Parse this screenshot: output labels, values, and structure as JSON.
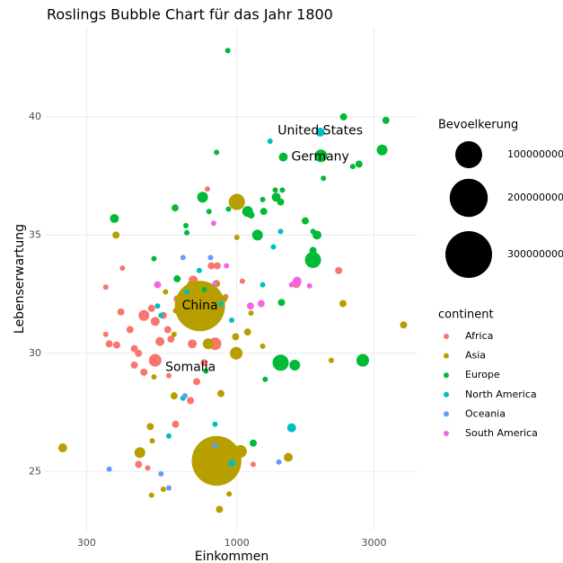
{
  "chart_data": {
    "type": "bubble",
    "title": "Roslings Bubble Chart für das Jahr 1800",
    "x_label": "Einkommen",
    "y_label": "Lebenserwartung",
    "x_log": true,
    "grid": true,
    "xlim": [
      215,
      4250
    ],
    "ylim": [
      22.5,
      43.8
    ],
    "xticks": [
      300,
      1000,
      3000
    ],
    "yticks": [
      25,
      30,
      35,
      40
    ],
    "size_legend_title": "Bevoelkerung",
    "size_legend": [
      100000000,
      200000000,
      300000000
    ],
    "color_legend_title": "continent",
    "series": [
      {
        "name": "Africa",
        "color": "#F8766D",
        "x": [
          360,
          395,
          425,
          475,
          520,
          540,
          555,
          505,
          520,
          575,
          590,
          440,
          382,
          350,
          350,
          400,
          455,
          475,
          440,
          612,
          690,
          725,
          770,
          840,
          700,
          650,
          665,
          705,
          855,
          915,
          790,
          620,
          455,
          490,
          795,
          745,
          1140,
          1045,
          2260,
          1610,
          580,
          815
        ],
        "values": [
          30.4,
          31.75,
          31.0,
          31.6,
          29.7,
          30.5,
          31.6,
          31.9,
          31.35,
          31.0,
          30.6,
          30.2,
          30.35,
          30.8,
          32.8,
          33.6,
          30.0,
          29.2,
          29.5,
          27.0,
          28.0,
          28.8,
          29.6,
          30.4,
          30.4,
          31.5,
          32.1,
          33.1,
          33.7,
          32.4,
          36.95,
          32.3,
          25.3,
          25.15,
          25.7,
          25.1,
          25.3,
          33.05,
          33.5,
          32.95,
          29.05,
          33.7
        ],
        "sizes": [
          7000000,
          7000000,
          7000000,
          16000000,
          22000000,
          11000000,
          7000000,
          7000000,
          11000000,
          7000000,
          7000000,
          7000000,
          7000000,
          4000000,
          4000000,
          4000000,
          7000000,
          7000000,
          7000000,
          7000000,
          7000000,
          7000000,
          7000000,
          22000000,
          11000000,
          7000000,
          7000000,
          11000000,
          7000000,
          4000000,
          4000000,
          7000000,
          7000000,
          4000000,
          7000000,
          7000000,
          4000000,
          4000000,
          7000000,
          11000000,
          4000000,
          7000000
        ]
      },
      {
        "name": "Asia",
        "color": "#B79F00",
        "x": [
          744,
          850,
          1000,
          380,
          248,
          460,
          500,
          508,
          995,
          795,
          605,
          880,
          1510,
          1030,
          870,
          940,
          505,
          555,
          2340,
          3800,
          2130,
          1090,
          1000,
          605,
          565,
          690,
          612,
          850,
          900,
          990,
          1230,
          1120,
          515
        ],
        "values": [
          32.0,
          25.45,
          36.4,
          35.0,
          26.0,
          25.8,
          26.9,
          26.3,
          30.0,
          30.4,
          28.2,
          28.3,
          25.6,
          25.85,
          23.4,
          24.05,
          24.0,
          24.25,
          32.1,
          31.2,
          29.7,
          30.9,
          34.9,
          30.8,
          32.6,
          32.9,
          31.8,
          32.95,
          32.3,
          30.7,
          30.3,
          31.7,
          29.0
        ],
        "sizes": [
          348000000,
          340000000,
          36000000,
          7000000,
          11000000,
          16000000,
          7000000,
          4000000,
          22000000,
          16000000,
          7000000,
          7000000,
          11000000,
          22000000,
          7000000,
          4000000,
          4000000,
          4000000,
          7000000,
          7000000,
          4000000,
          7000000,
          4000000,
          4000000,
          4000000,
          7000000,
          4000000,
          7000000,
          7000000,
          7000000,
          4000000,
          4000000,
          4000000
        ]
      },
      {
        "name": "Europe",
        "color": "#00BA38",
        "x": [
          930,
          2350,
          3300,
          1450,
          1960,
          3200,
          2660,
          2530,
          2000,
          850,
          760,
          1360,
          1440,
          1370,
          1420,
          1230,
          1090,
          1120,
          1240,
          935,
          800,
          610,
          375,
          1730,
          1840,
          1900,
          1180,
          665,
          670,
          1840,
          1840,
          515,
          620,
          1430,
          1420,
          1590,
          2740,
          1255,
          780,
          1140,
          770
        ],
        "values": [
          42.8,
          40.0,
          39.85,
          38.3,
          38.35,
          38.6,
          38.0,
          37.9,
          37.4,
          38.5,
          36.6,
          36.9,
          36.9,
          36.6,
          36.4,
          36.5,
          36.0,
          35.85,
          36.0,
          36.1,
          36.0,
          36.15,
          35.7,
          35.6,
          35.15,
          35.0,
          35.0,
          35.4,
          35.1,
          34.35,
          33.95,
          34.0,
          33.15,
          32.15,
          29.6,
          29.5,
          29.7,
          28.9,
          29.25,
          26.2,
          32.7
        ],
        "sizes": [
          4000000,
          7000000,
          7000000,
          11000000,
          22000000,
          16000000,
          7000000,
          4000000,
          4000000,
          4000000,
          16000000,
          4000000,
          4000000,
          11000000,
          7000000,
          4000000,
          16000000,
          7000000,
          7000000,
          4000000,
          4000000,
          7000000,
          11000000,
          7000000,
          4000000,
          11000000,
          16000000,
          4000000,
          4000000,
          7000000,
          36000000,
          4000000,
          7000000,
          7000000,
          36000000,
          16000000,
          22000000,
          4000000,
          4000000,
          7000000,
          4000000
        ]
      },
      {
        "name": "North America",
        "color": "#00BFC4",
        "x": [
          1950,
          1305,
          1550,
          960,
          880,
          740,
          670,
          960,
          1420,
          1340,
          1230,
          545,
          650,
          580,
          840,
          530
        ],
        "values": [
          39.35,
          38.97,
          26.85,
          25.35,
          32.1,
          33.5,
          32.6,
          31.4,
          35.15,
          34.5,
          32.9,
          31.6,
          28.1,
          26.5,
          27.0,
          32.0
        ],
        "sizes": [
          11000000,
          4000000,
          11000000,
          7000000,
          4000000,
          4000000,
          4000000,
          4000000,
          4000000,
          4000000,
          4000000,
          4000000,
          4000000,
          4000000,
          4000000,
          4000000
        ]
      },
      {
        "name": "Oceania",
        "color": "#619CFF",
        "x": [
          360,
          545,
          580,
          1400,
          650,
          810,
          660,
          840
        ],
        "values": [
          25.1,
          24.9,
          24.3,
          25.4,
          34.05,
          34.05,
          28.2,
          26.1
        ],
        "sizes": [
          4000000,
          4000000,
          4000000,
          4000000,
          4000000,
          4000000,
          4000000,
          4000000
        ]
      },
      {
        "name": "South America",
        "color": "#F564E3",
        "x": [
          530,
          1620,
          1790,
          830,
          1115,
          1215,
          840,
          1550,
          920
        ],
        "values": [
          32.9,
          33.05,
          32.85,
          35.5,
          32.0,
          32.1,
          32.95,
          32.9,
          33.7
        ],
        "sizes": [
          7000000,
          11000000,
          4000000,
          4000000,
          7000000,
          7000000,
          4000000,
          4000000,
          4000000
        ]
      }
    ],
    "annotations": [
      {
        "text": "United States",
        "x": 1950,
        "y": 39.4
      },
      {
        "text": "Germany",
        "x": 1950,
        "y": 38.3
      },
      {
        "text": "China",
        "x": 744,
        "y": 32.0
      },
      {
        "text": "Somalia",
        "x": 690,
        "y": 29.4
      }
    ]
  }
}
